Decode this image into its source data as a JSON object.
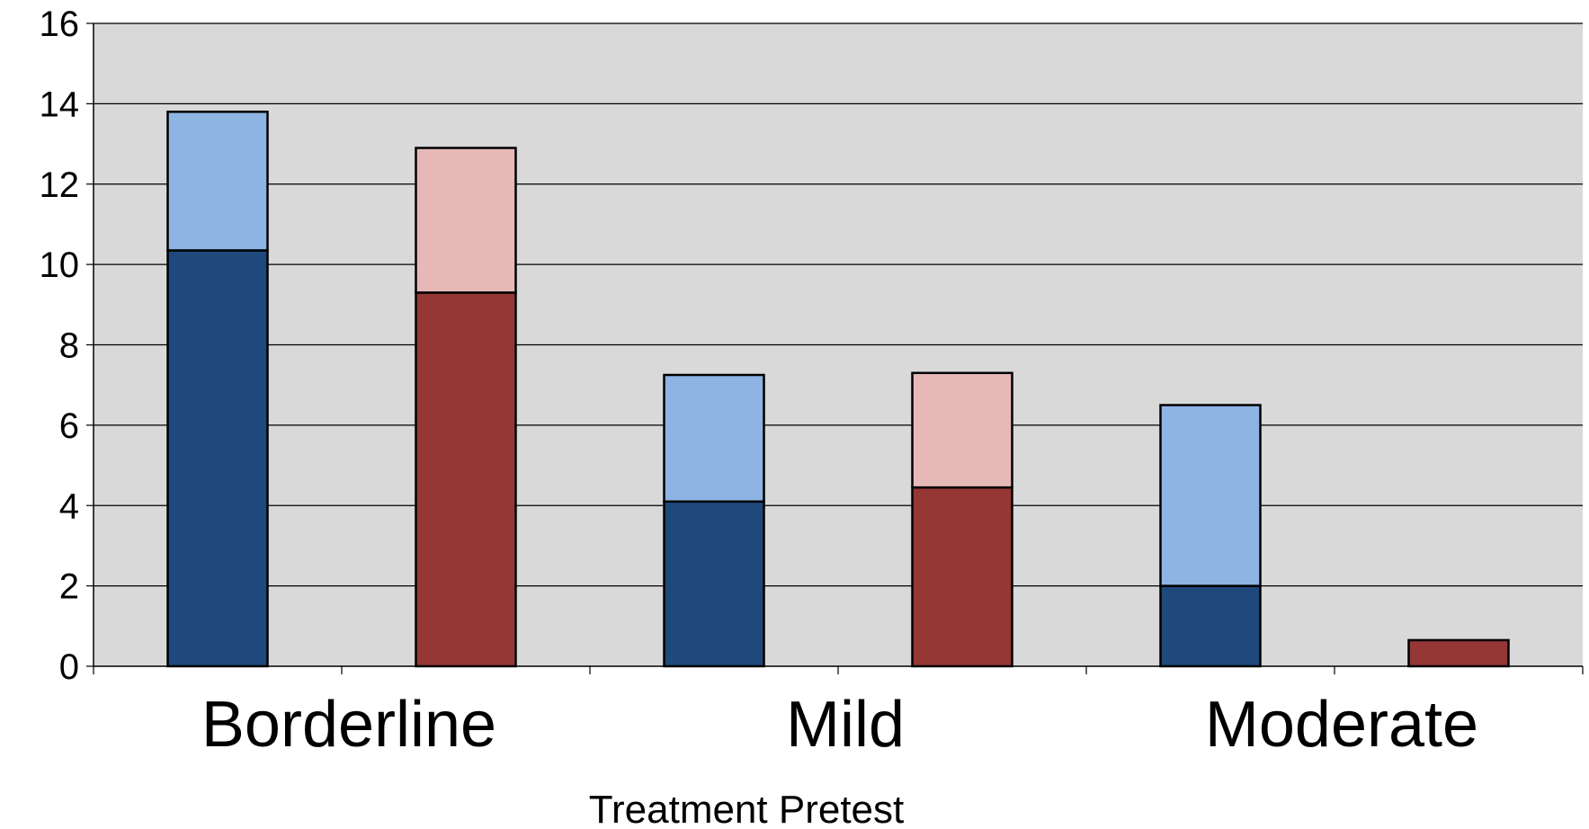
{
  "chart_data": {
    "type": "bar",
    "stacked": true,
    "categories": [
      "Borderline",
      "Mild",
      "Moderate"
    ],
    "xlabel": "Treatment Pretest",
    "ylabel": "",
    "ylim": [
      0,
      16
    ],
    "yticks": [
      0,
      2,
      4,
      6,
      8,
      10,
      12,
      14,
      16
    ],
    "grid": true,
    "background": "#d9d9d9",
    "groups": [
      {
        "category": "Borderline",
        "bars": [
          {
            "bottom": 10.35,
            "top": 13.8,
            "bottom_color": "#1f497d",
            "top_color": "#8eb4e3"
          },
          {
            "bottom": 9.3,
            "top": 12.9,
            "bottom_color": "#953735",
            "top_color": "#e6b9b8"
          }
        ]
      },
      {
        "category": "Mild",
        "bars": [
          {
            "bottom": 4.1,
            "top": 7.25,
            "bottom_color": "#1f497d",
            "top_color": "#8eb4e3"
          },
          {
            "bottom": 4.45,
            "top": 7.3,
            "bottom_color": "#953735",
            "top_color": "#e6b9b8"
          }
        ]
      },
      {
        "category": "Moderate",
        "bars": [
          {
            "bottom": 2.0,
            "top": 6.5,
            "bottom_color": "#1f497d",
            "top_color": "#8eb4e3"
          },
          {
            "bottom": 0.65,
            "top": 0.65,
            "bottom_color": "#953735",
            "top_color": "#e6b9b8"
          }
        ]
      }
    ]
  }
}
